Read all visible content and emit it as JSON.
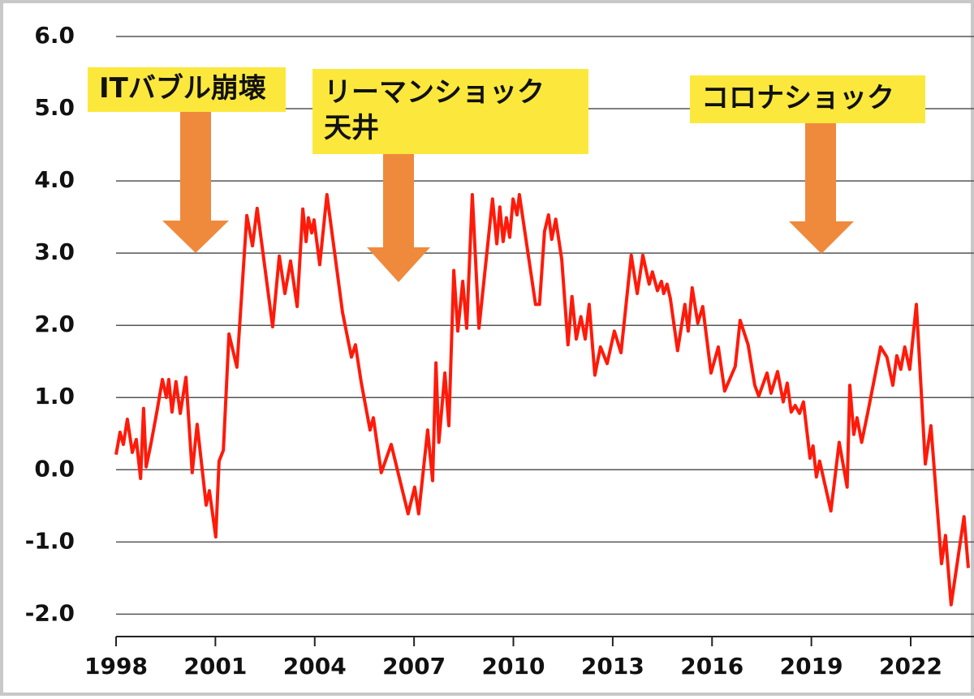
{
  "chart_data": {
    "type": "line",
    "x": [
      1998.0,
      1998.12,
      1998.22,
      1998.34,
      1998.49,
      1998.61,
      1998.74,
      1998.83,
      1998.91,
      1999.05,
      1999.23,
      1999.4,
      1999.52,
      1999.59,
      1999.69,
      1999.81,
      1999.94,
      2000.11,
      2000.3,
      2000.45,
      2000.72,
      2000.82,
      2001.01,
      2001.11,
      2001.24,
      2001.41,
      2001.65,
      2001.95,
      2002.12,
      2002.26,
      2002.73,
      2002.93,
      2003.1,
      2003.27,
      2003.47,
      2003.64,
      2003.74,
      2003.81,
      2003.91,
      2003.98,
      2004.15,
      2004.37,
      2004.84,
      2005.11,
      2005.23,
      2005.4,
      2005.67,
      2005.77,
      2006.01,
      2006.31,
      2006.82,
      2007.02,
      2007.14,
      2007.41,
      2007.56,
      2007.66,
      2007.75,
      2007.93,
      2008.05,
      2008.2,
      2008.32,
      2008.47,
      2008.59,
      2008.76,
      2008.96,
      2009.37,
      2009.5,
      2009.59,
      2009.69,
      2009.79,
      2009.89,
      2009.99,
      2010.11,
      2010.18,
      2010.67,
      2010.79,
      2010.94,
      2011.06,
      2011.16,
      2011.28,
      2011.46,
      2011.65,
      2011.77,
      2011.9,
      2012.04,
      2012.17,
      2012.29,
      2012.46,
      2012.63,
      2012.83,
      2013.05,
      2013.25,
      2013.56,
      2013.74,
      2013.91,
      2014.1,
      2014.2,
      2014.35,
      2014.47,
      2014.54,
      2014.64,
      2014.74,
      2014.96,
      2015.18,
      2015.28,
      2015.4,
      2015.57,
      2015.72,
      2015.97,
      2016.19,
      2016.38,
      2016.7,
      2016.85,
      2017.09,
      2017.29,
      2017.41,
      2017.66,
      2017.78,
      2017.98,
      2018.15,
      2018.27,
      2018.39,
      2018.51,
      2018.64,
      2018.76,
      2018.96,
      2019.05,
      2019.15,
      2019.25,
      2019.59,
      2019.84,
      2020.08,
      2020.16,
      2020.28,
      2020.38,
      2020.52,
      2020.72,
      2021.09,
      2021.28,
      2021.46,
      2021.58,
      2021.7,
      2021.82,
      2021.97,
      2022.17,
      2022.44,
      2022.61,
      2022.93,
      2023.05,
      2023.22,
      2023.61,
      2023.74
    ],
    "series": [
      {
        "color": "#ff1a0a",
        "values": [
          0.21,
          0.52,
          0.35,
          0.7,
          0.24,
          0.42,
          -0.12,
          0.85,
          0.04,
          0.35,
          0.8,
          1.25,
          1.0,
          1.25,
          0.8,
          1.22,
          0.78,
          1.28,
          -0.04,
          0.63,
          -0.49,
          -0.29,
          -0.93,
          0.12,
          0.27,
          1.88,
          1.42,
          3.52,
          3.1,
          3.62,
          1.98,
          2.96,
          2.44,
          2.89,
          2.26,
          3.61,
          3.16,
          3.49,
          3.28,
          3.46,
          2.84,
          3.81,
          2.18,
          1.56,
          1.73,
          1.22,
          0.55,
          0.72,
          -0.04,
          0.35,
          -0.61,
          -0.24,
          -0.61,
          0.55,
          -0.15,
          1.48,
          0.38,
          1.34,
          0.61,
          2.76,
          1.92,
          2.61,
          1.96,
          3.81,
          1.96,
          3.75,
          3.13,
          3.64,
          3.16,
          3.49,
          3.22,
          3.75,
          3.53,
          3.81,
          2.29,
          2.29,
          3.3,
          3.53,
          3.19,
          3.47,
          2.91,
          1.73,
          2.4,
          1.81,
          2.12,
          1.81,
          2.29,
          1.31,
          1.7,
          1.47,
          1.92,
          1.62,
          2.97,
          2.44,
          2.97,
          2.57,
          2.74,
          2.48,
          2.61,
          2.44,
          2.57,
          2.37,
          1.65,
          2.29,
          1.92,
          2.52,
          2.03,
          2.26,
          1.34,
          1.7,
          1.09,
          1.43,
          2.07,
          1.73,
          1.17,
          1.02,
          1.34,
          1.06,
          1.36,
          0.94,
          1.2,
          0.8,
          0.89,
          0.78,
          0.94,
          0.16,
          0.33,
          -0.1,
          0.12,
          -0.57,
          0.38,
          -0.24,
          1.17,
          0.49,
          0.72,
          0.38,
          0.83,
          1.7,
          1.56,
          1.17,
          1.58,
          1.39,
          1.7,
          1.39,
          2.29,
          0.08,
          0.61,
          -1.3,
          -0.91,
          -1.87,
          -0.65,
          -1.36
        ]
      }
    ],
    "xlim": [
      1998,
      2023.74
    ],
    "xticks": [
      1998,
      2001,
      2004,
      2007,
      2010,
      2013,
      2016,
      2019,
      2022
    ],
    "ylim": [
      -2.31,
      6
    ],
    "yticks": [
      {
        "value": 6,
        "label": "6.0"
      },
      {
        "value": 5,
        "label": "5.0"
      },
      {
        "value": 4,
        "label": "4.0"
      },
      {
        "value": 3,
        "label": "3.0"
      },
      {
        "value": 2,
        "label": "2.0"
      },
      {
        "value": 1,
        "label": "1.0"
      },
      {
        "value": 0,
        "label": "0.0"
      },
      {
        "value": -1,
        "label": "-1.0"
      },
      {
        "value": -2,
        "label": "-2.0"
      }
    ],
    "grid": true,
    "annotations": [
      {
        "lines": [
          "ITバブル崩壊"
        ]
      },
      {
        "lines": [
          "リーマンショック",
          "天井"
        ]
      },
      {
        "lines": [
          "コロナショック"
        ]
      }
    ]
  }
}
